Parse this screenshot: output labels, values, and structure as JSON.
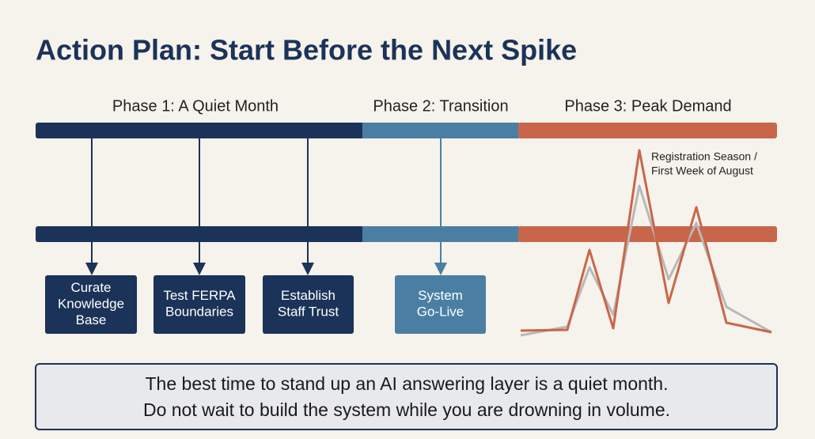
{
  "header": {
    "title": "Action Plan: Start Before the Next Spike"
  },
  "phases": [
    {
      "label": "Phase 1: A Quiet Month"
    },
    {
      "label": "Phase 2: Transition"
    },
    {
      "label": "Phase 3: Peak Demand"
    }
  ],
  "boxes": [
    {
      "lines": [
        "Curate",
        "Knowledge",
        "Base"
      ]
    },
    {
      "lines": [
        "Test FERPA",
        "Boundaries"
      ]
    },
    {
      "lines": [
        "Establish",
        "Staff Trust"
      ]
    },
    {
      "lines": [
        "System",
        "Go-Live"
      ]
    }
  ],
  "spike": {
    "lines": [
      "Registration Season /",
      "First Week of August"
    ]
  },
  "message": {
    "lines": [
      "The best time to stand up an AI answering layer is a quiet month.",
      "Do not wait to build the system while you are drowning in volume."
    ]
  }
}
